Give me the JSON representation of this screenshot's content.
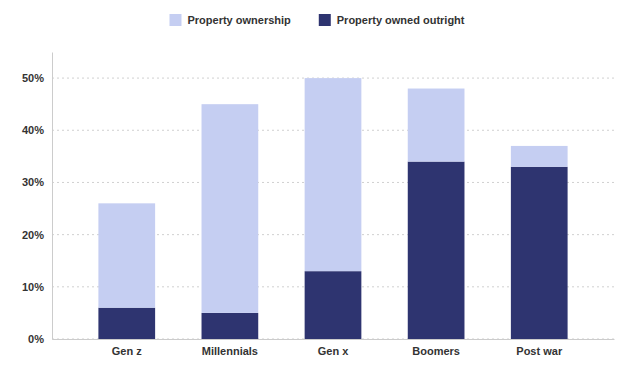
{
  "chart_data": {
    "type": "bar",
    "stacked": true,
    "categories": [
      "Gen z",
      "Millennials",
      "Gen x",
      "Boomers",
      "Post war"
    ],
    "series": [
      {
        "name": "Property owned outright",
        "color": "#2e3470",
        "values": [
          6,
          5,
          13,
          34,
          33
        ]
      },
      {
        "name": "Property ownership",
        "color": "#c5cef2",
        "values": [
          20,
          40,
          37,
          14,
          4
        ]
      }
    ],
    "ylim": [
      0,
      55
    ],
    "yticks": [
      {
        "value": 0,
        "label": "0%"
      },
      {
        "value": 10,
        "label": "10%"
      },
      {
        "value": 20,
        "label": "20%"
      },
      {
        "value": 30,
        "label": "30%"
      },
      {
        "value": 40,
        "label": "40%"
      },
      {
        "value": 50,
        "label": "50%"
      }
    ],
    "grid": true,
    "legend": "top"
  }
}
